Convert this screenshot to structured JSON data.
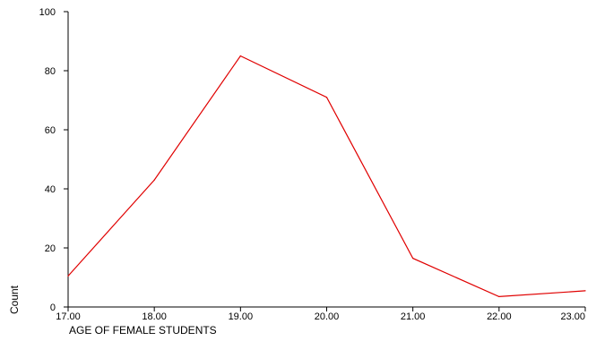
{
  "chart_data": {
    "type": "line",
    "x": [
      17,
      18,
      19,
      20,
      21,
      22,
      23
    ],
    "x_tick_labels": [
      "17.00",
      "18.00",
      "19.00",
      "20.00",
      "21.00",
      "22.00",
      "23.00"
    ],
    "y_ticks": [
      0,
      20,
      40,
      60,
      80,
      100
    ],
    "y_tick_labels": [
      "0",
      "20",
      "40",
      "60",
      "80",
      "100"
    ],
    "xlim": [
      17,
      23
    ],
    "ylim": [
      0,
      100
    ],
    "series": [
      {
        "values": [
          10.5,
          43,
          85,
          71,
          16.5,
          3.5,
          5.5
        ],
        "color": "#e00000"
      }
    ],
    "xlabel": "AGE OF FEMALE STUDENTS",
    "ylabel": "Count",
    "grid": false,
    "legend": "none"
  }
}
